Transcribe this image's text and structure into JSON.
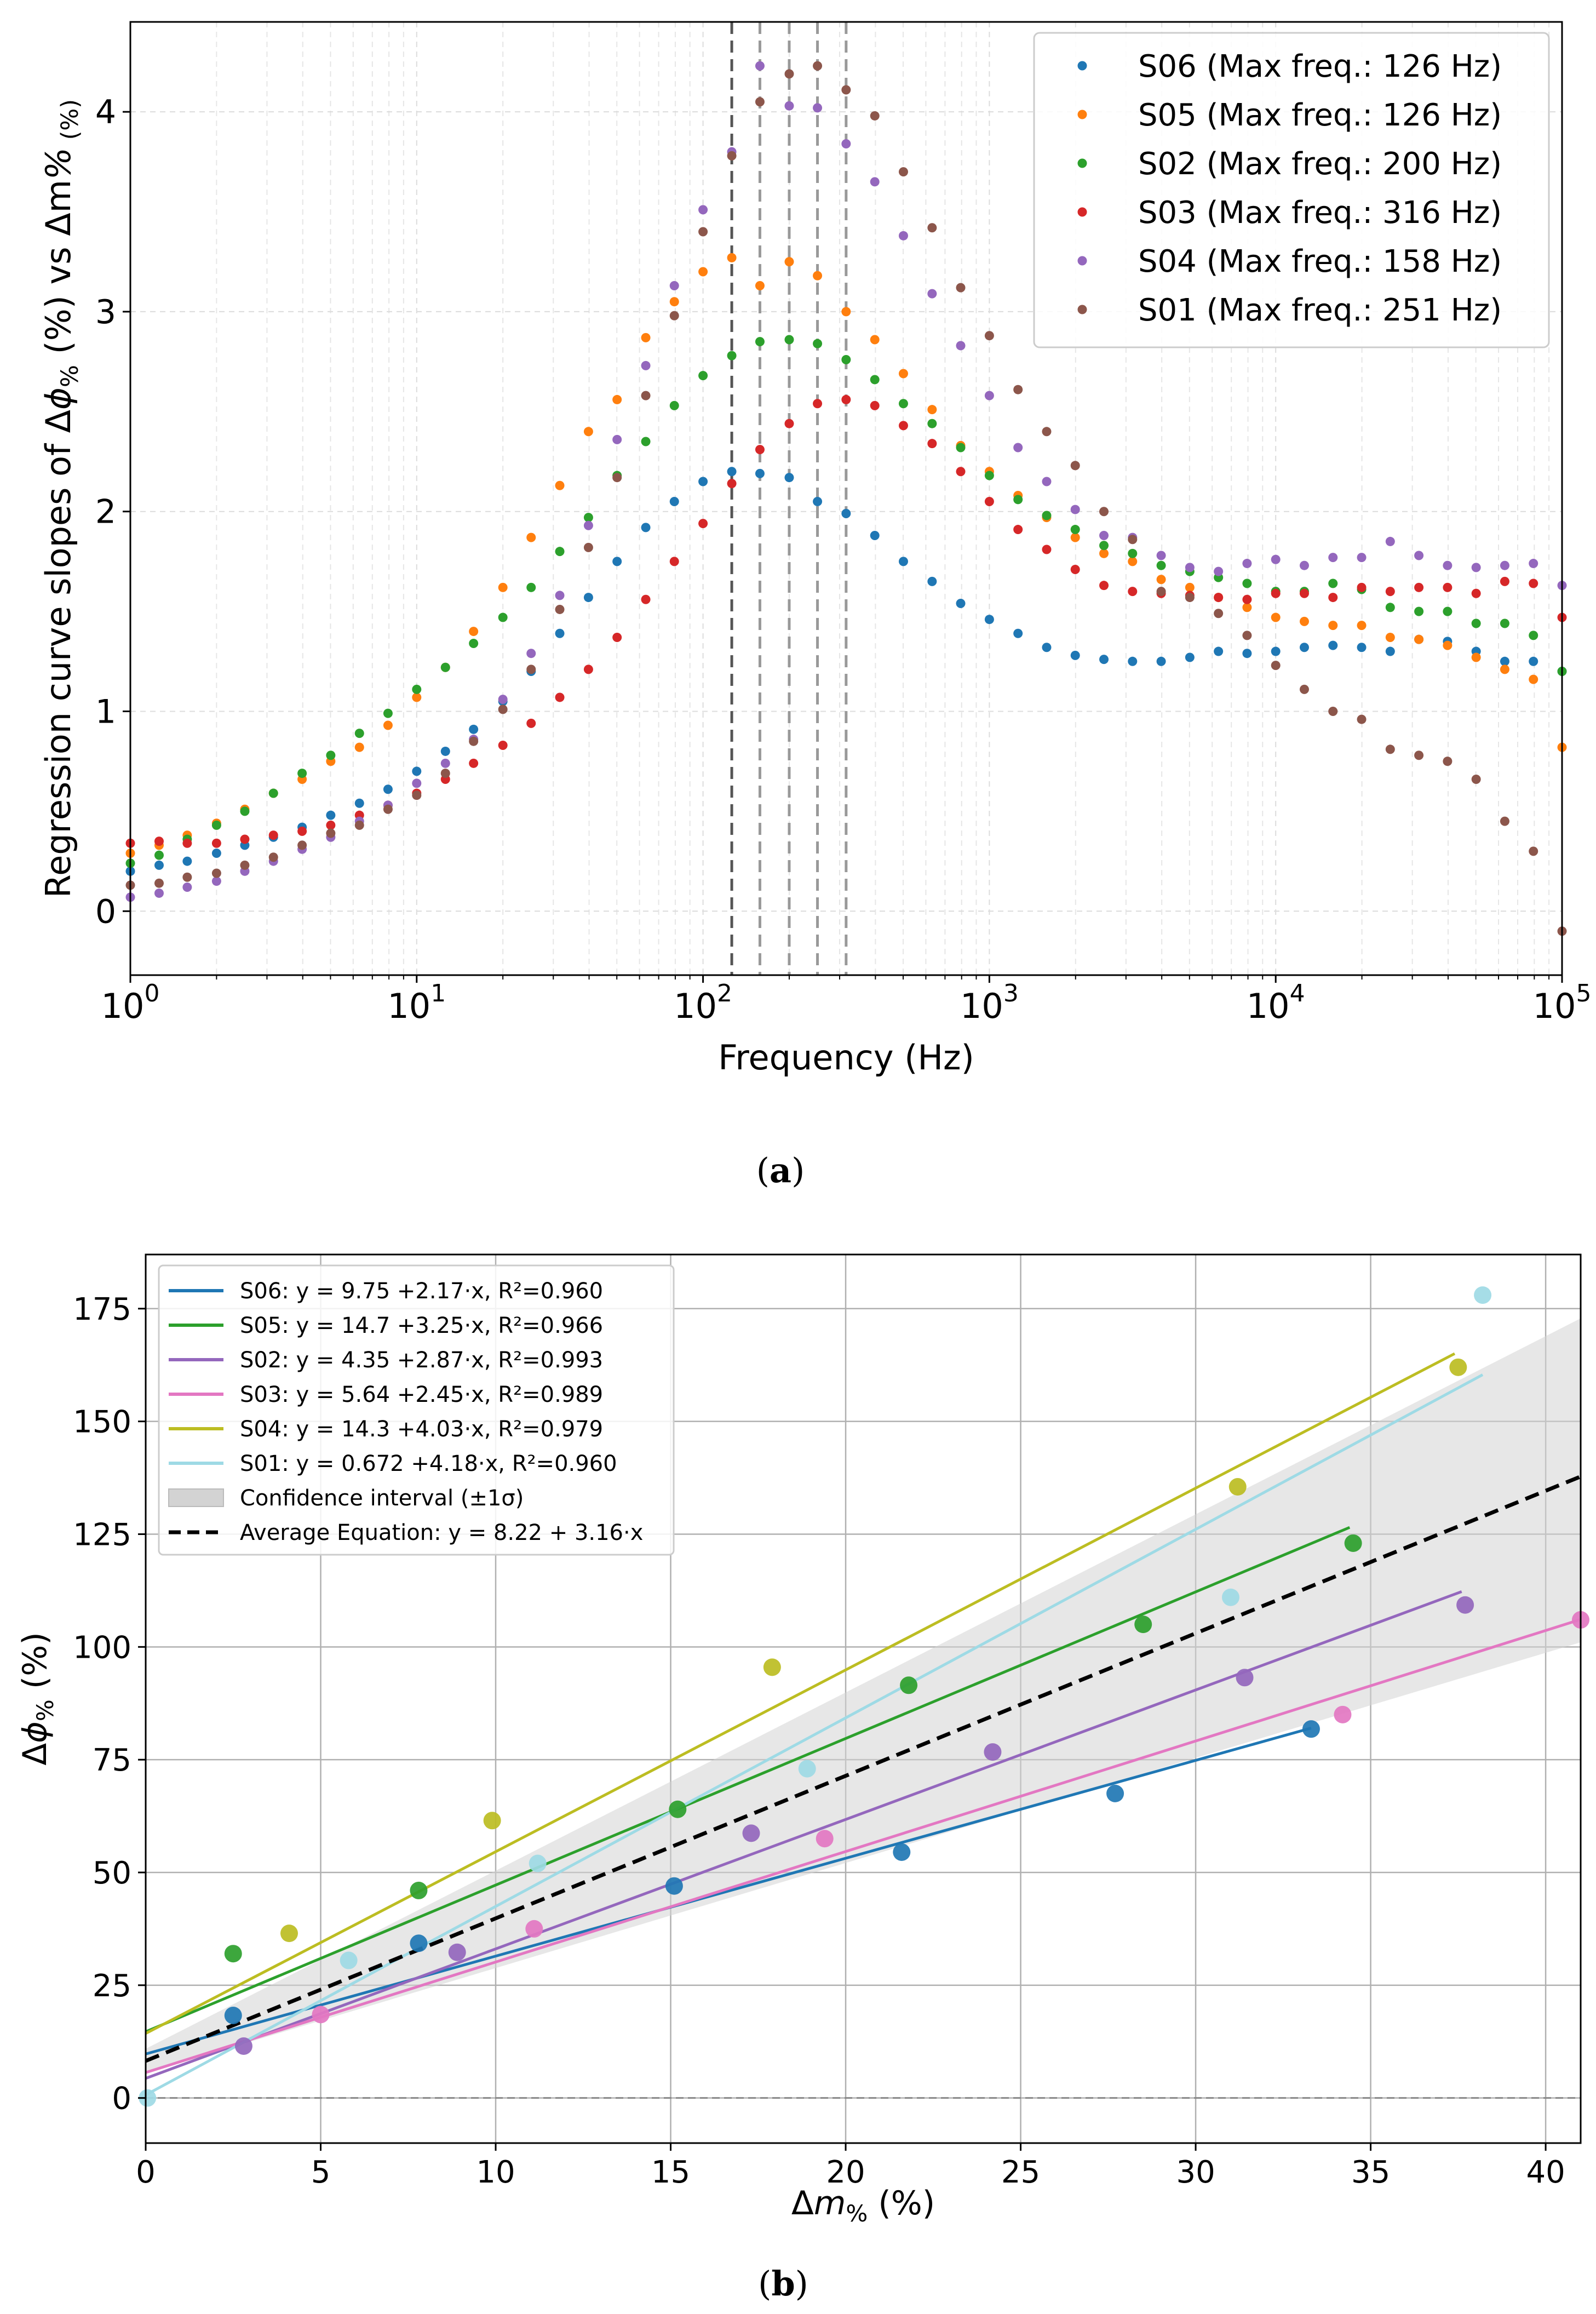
{
  "chart_data": [
    {
      "type": "scatter",
      "panel_label": "(a)",
      "panel_label_letter": "a",
      "xlabel": "Frequency (Hz)",
      "ylabel_parts": [
        "Regression curve slopes of Δ",
        "ϕ",
        "%",
        " (%) vs Δ",
        "m",
        "%",
        " (%)"
      ],
      "x_scale": "log",
      "xlim": [
        1,
        100000
      ],
      "ylim": [
        -0.32,
        4.45
      ],
      "x_ticks": [
        {
          "base": "10",
          "exp": "0",
          "value": 1
        },
        {
          "base": "10",
          "exp": "1",
          "value": 10
        },
        {
          "base": "10",
          "exp": "2",
          "value": 100
        },
        {
          "base": "10",
          "exp": "3",
          "value": 1000
        },
        {
          "base": "10",
          "exp": "4",
          "value": 10000
        },
        {
          "base": "10",
          "exp": "5",
          "value": 100000
        }
      ],
      "y_ticks": [
        "0",
        "1",
        "2",
        "3",
        "4"
      ],
      "grid": true,
      "legend_position": "top-right",
      "vlines": [
        {
          "x": 126,
          "color": "#555555"
        },
        {
          "x": 158,
          "color": "#999999"
        },
        {
          "x": 200,
          "color": "#999999"
        },
        {
          "x": 251,
          "color": "#999999"
        },
        {
          "x": 316,
          "color": "#999999"
        }
      ],
      "x": [
        1.0,
        1.26,
        1.58,
        2.0,
        2.51,
        3.16,
        3.98,
        5.01,
        6.31,
        7.94,
        10.0,
        12.6,
        15.8,
        20.0,
        25.1,
        31.6,
        39.8,
        50.1,
        63.1,
        79.4,
        100,
        126,
        158,
        200,
        251,
        316,
        398,
        501,
        631,
        794,
        1000,
        1259,
        1585,
        1995,
        2512,
        3162,
        3981,
        5012,
        6310,
        7943,
        10000,
        12589,
        15849,
        19953,
        25119,
        31623,
        39811,
        50119,
        63096,
        79433,
        100000
      ],
      "series": [
        {
          "name": "S06 (Max freq.: 126 Hz)",
          "color": "#1f77b4",
          "values": [
            0.2,
            0.23,
            0.25,
            0.29,
            0.33,
            0.37,
            0.42,
            0.48,
            0.54,
            0.61,
            0.7,
            0.8,
            0.91,
            1.05,
            1.2,
            1.39,
            1.57,
            1.75,
            1.92,
            2.05,
            2.15,
            2.2,
            2.19,
            2.17,
            2.05,
            1.99,
            1.88,
            1.75,
            1.65,
            1.54,
            1.46,
            1.39,
            1.32,
            1.28,
            1.26,
            1.25,
            1.25,
            1.27,
            1.3,
            1.29,
            1.3,
            1.32,
            1.33,
            1.32,
            1.3,
            1.36,
            1.35,
            1.3,
            1.25,
            1.25,
            1.2
          ]
        },
        {
          "name": "S05 (Max freq.: 126 Hz)",
          "color": "#ff7f0e",
          "values": [
            0.29,
            0.33,
            0.38,
            0.44,
            0.51,
            0.59,
            0.66,
            0.75,
            0.82,
            0.93,
            1.07,
            1.22,
            1.4,
            1.62,
            1.87,
            2.13,
            2.4,
            2.56,
            2.87,
            3.05,
            3.2,
            3.27,
            3.13,
            3.25,
            3.18,
            3.0,
            2.86,
            2.69,
            2.51,
            2.33,
            2.2,
            2.08,
            1.97,
            1.87,
            1.79,
            1.75,
            1.66,
            1.62,
            1.57,
            1.52,
            1.47,
            1.45,
            1.43,
            1.43,
            1.37,
            1.36,
            1.33,
            1.27,
            1.21,
            1.16,
            0.82
          ]
        },
        {
          "name": "S02 (Max freq.: 200 Hz)",
          "color": "#2ca02c",
          "values": [
            0.24,
            0.28,
            0.36,
            0.43,
            0.5,
            0.59,
            0.69,
            0.78,
            0.89,
            0.99,
            1.11,
            1.22,
            1.34,
            1.47,
            1.62,
            1.8,
            1.97,
            2.18,
            2.35,
            2.53,
            2.68,
            2.78,
            2.85,
            2.86,
            2.84,
            2.76,
            2.66,
            2.54,
            2.44,
            2.32,
            2.18,
            2.06,
            1.98,
            1.91,
            1.83,
            1.79,
            1.73,
            1.7,
            1.67,
            1.64,
            1.6,
            1.6,
            1.64,
            1.61,
            1.52,
            1.5,
            1.5,
            1.44,
            1.44,
            1.38,
            1.2
          ]
        },
        {
          "name": "S03 (Max freq.: 316 Hz)",
          "color": "#d62728",
          "values": [
            0.34,
            0.35,
            0.34,
            0.34,
            0.36,
            0.38,
            0.4,
            0.43,
            0.48,
            0.53,
            0.59,
            0.66,
            0.74,
            0.83,
            0.94,
            1.07,
            1.21,
            1.37,
            1.56,
            1.75,
            1.94,
            2.14,
            2.31,
            2.44,
            2.54,
            2.56,
            2.53,
            2.43,
            2.34,
            2.2,
            2.05,
            1.91,
            1.81,
            1.71,
            1.63,
            1.6,
            1.59,
            1.58,
            1.57,
            1.56,
            1.59,
            1.59,
            1.57,
            1.62,
            1.6,
            1.62,
            1.62,
            1.59,
            1.65,
            1.64,
            1.47
          ]
        },
        {
          "name": "S04 (Max freq.: 158 Hz)",
          "color": "#9467bd",
          "values": [
            0.07,
            0.09,
            0.12,
            0.15,
            0.2,
            0.25,
            0.31,
            0.37,
            0.45,
            0.53,
            0.64,
            0.74,
            0.86,
            1.06,
            1.29,
            1.58,
            1.93,
            2.36,
            2.73,
            3.13,
            3.51,
            3.8,
            4.23,
            4.03,
            4.02,
            3.84,
            3.65,
            3.38,
            3.09,
            2.83,
            2.58,
            2.32,
            2.15,
            2.01,
            1.88,
            1.87,
            1.78,
            1.72,
            1.7,
            1.74,
            1.76,
            1.73,
            1.77,
            1.77,
            1.85,
            1.78,
            1.73,
            1.72,
            1.73,
            1.74,
            1.63
          ]
        },
        {
          "name": "S01 (Max freq.: 251 Hz)",
          "color": "#8c564b",
          "values": [
            0.13,
            0.14,
            0.17,
            0.19,
            0.23,
            0.27,
            0.33,
            0.39,
            0.43,
            0.51,
            0.58,
            0.69,
            0.85,
            1.01,
            1.21,
            1.51,
            1.82,
            2.17,
            2.58,
            2.98,
            3.4,
            3.78,
            4.05,
            4.19,
            4.23,
            4.11,
            3.98,
            3.7,
            3.42,
            3.12,
            2.88,
            2.61,
            2.4,
            2.23,
            2.0,
            1.86,
            1.6,
            1.57,
            1.49,
            1.38,
            1.23,
            1.11,
            1.0,
            0.96,
            0.81,
            0.78,
            0.75,
            0.66,
            0.45,
            0.3,
            -0.1
          ]
        }
      ]
    },
    {
      "type": "scatter",
      "panel_label": "(b)",
      "panel_label_letter": "b",
      "xlabel_parts": [
        "Δ",
        "m",
        "%",
        " (%)"
      ],
      "ylabel_parts": [
        "Δ",
        "ϕ",
        "%",
        " (%)"
      ],
      "xlim": [
        0,
        41
      ],
      "ylim": [
        -10,
        187
      ],
      "x_ticks": [
        0,
        5,
        10,
        15,
        20,
        25,
        30,
        35,
        40
      ],
      "y_ticks": [
        0,
        25,
        50,
        75,
        100,
        125,
        150,
        175
      ],
      "grid": true,
      "legend_position": "top-left",
      "hline": {
        "y": 0,
        "color": "#888888"
      },
      "series": [
        {
          "name": "S06: y = 9.75 +2.17·x, R²=0.960",
          "color": "#1f77b4",
          "point_color": "#1f77b4",
          "intercept": 9.75,
          "slope": 2.17,
          "line_x": [
            0,
            33.3
          ],
          "x": [
            2.5,
            7.8,
            15.1,
            21.6,
            27.7,
            33.3
          ],
          "y": [
            18.3,
            34.3,
            47.0,
            54.5,
            67.5,
            81.8
          ]
        },
        {
          "name": "S05: y = 14.7 +3.25·x, R²=0.966",
          "color": "#2ca02c",
          "point_color": "#2ca02c",
          "intercept": 14.7,
          "slope": 3.25,
          "line_x": [
            0,
            34.4
          ],
          "x": [
            2.5,
            7.8,
            15.2,
            21.8,
            28.5,
            34.5
          ],
          "y": [
            32.0,
            46.0,
            64.0,
            91.5,
            105.0,
            123.0
          ]
        },
        {
          "name": "S02: y = 4.35 +2.87·x, R²=0.993",
          "color": "#9467bd",
          "point_color": "#9467bd",
          "intercept": 4.35,
          "slope": 2.87,
          "line_x": [
            0,
            37.6
          ],
          "x": [
            2.8,
            8.9,
            17.3,
            24.2,
            31.4,
            37.7
          ],
          "y": [
            11.5,
            32.3,
            58.7,
            76.7,
            93.2,
            109.3
          ]
        },
        {
          "name": "S03: y = 5.64 +2.45·x, R²=0.989",
          "color": "#e377c2",
          "point_color": "#e377c2",
          "intercept": 5.64,
          "slope": 2.45,
          "line_x": [
            0,
            41
          ],
          "x": [
            5.0,
            11.1,
            19.4,
            34.2,
            41.0
          ],
          "y": [
            18.5,
            37.5,
            57.5,
            85.0,
            106.0
          ]
        },
        {
          "name": "S04: y = 14.3 +4.03·x, R²=0.979",
          "color": "#bcbd22",
          "point_color": "#bcbd22",
          "intercept": 14.3,
          "slope": 4.03,
          "line_x": [
            0,
            37.4
          ],
          "x": [
            4.1,
            9.9,
            17.9,
            31.2,
            37.5
          ],
          "y": [
            36.5,
            61.5,
            95.5,
            135.5,
            162.0
          ]
        },
        {
          "name": "S01: y = 0.672 +4.18·x, R²=0.960",
          "color": "#9edae5",
          "point_color": "#9edae5",
          "intercept": 0.672,
          "slope": 4.18,
          "line_x": [
            0,
            38.2
          ],
          "x": [
            0.05,
            5.8,
            11.2,
            18.9,
            31.0,
            38.2
          ],
          "y": [
            0.0,
            30.5,
            52.0,
            73.0,
            111.0,
            178.0
          ]
        }
      ],
      "confidence_interval": {
        "name": "Confidence interval (±1σ)",
        "color": "#d3d3d3",
        "lower_intercept": 5.5,
        "lower_slope": 2.33,
        "upper_intercept": 10.9,
        "upper_slope": 3.95
      },
      "average_line": {
        "name": "Average Equation: y = 8.22 + 3.16·x",
        "intercept": 8.22,
        "slope": 3.16
      }
    }
  ]
}
